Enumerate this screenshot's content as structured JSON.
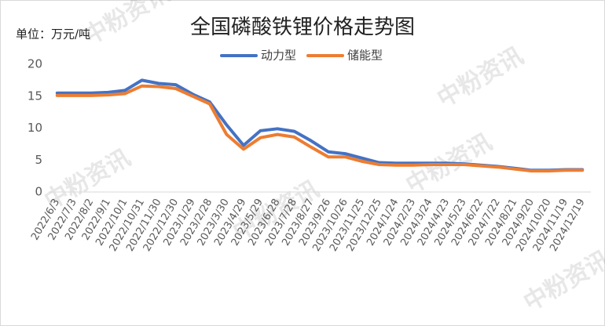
{
  "chart_data": {
    "type": "line",
    "title": "全国磷酸铁锂价格走势图",
    "unit_label": "单位：万元/吨",
    "watermark": "中粉资讯",
    "categories": [
      "2022/6/3",
      "2022/7/3",
      "2022/8/2",
      "2022/9/1",
      "2022/10/1",
      "2022/10/31",
      "2022/11/30",
      "2022/12/30",
      "2023/1/29",
      "2023/2/28",
      "2023/3/30",
      "2023/4/29",
      "2023/5/29",
      "2023/6/28",
      "2023/7/28",
      "2023/8/27",
      "2023/9/26",
      "2023/10/26",
      "2023/11/25",
      "2023/12/25",
      "2024/1/24",
      "2024/2/23",
      "2024/3/24",
      "2024/4/23",
      "2024/5/23",
      "2024/6/22",
      "2024/7/22",
      "2024/8/21",
      "2024/9/20",
      "2024/10/20",
      "2024/11/19",
      "2024/12/19"
    ],
    "series": [
      {
        "name": "动力型",
        "color": "#4472c4",
        "values": [
          15.5,
          15.5,
          15.5,
          15.6,
          15.9,
          17.5,
          17.0,
          16.8,
          15.3,
          14.1,
          10.5,
          7.3,
          9.6,
          9.9,
          9.5,
          8.0,
          6.3,
          6.0,
          5.3,
          4.6,
          4.5,
          4.5,
          4.5,
          4.5,
          4.4,
          4.2,
          4.0,
          3.7,
          3.4,
          3.4,
          3.5,
          3.5
        ]
      },
      {
        "name": "储能型",
        "color": "#ed7d31",
        "values": [
          15.1,
          15.1,
          15.1,
          15.2,
          15.4,
          16.6,
          16.5,
          16.2,
          15.0,
          13.8,
          9.0,
          6.7,
          8.5,
          9.0,
          8.6,
          7.0,
          5.5,
          5.5,
          4.8,
          4.3,
          4.2,
          4.2,
          4.3,
          4.3,
          4.3,
          4.1,
          3.9,
          3.6,
          3.3,
          3.3,
          3.4,
          3.4
        ]
      }
    ],
    "ylim": [
      0,
      20
    ],
    "yticks": [
      0,
      5,
      10,
      15,
      20
    ],
    "grid": false,
    "legend": "top"
  }
}
